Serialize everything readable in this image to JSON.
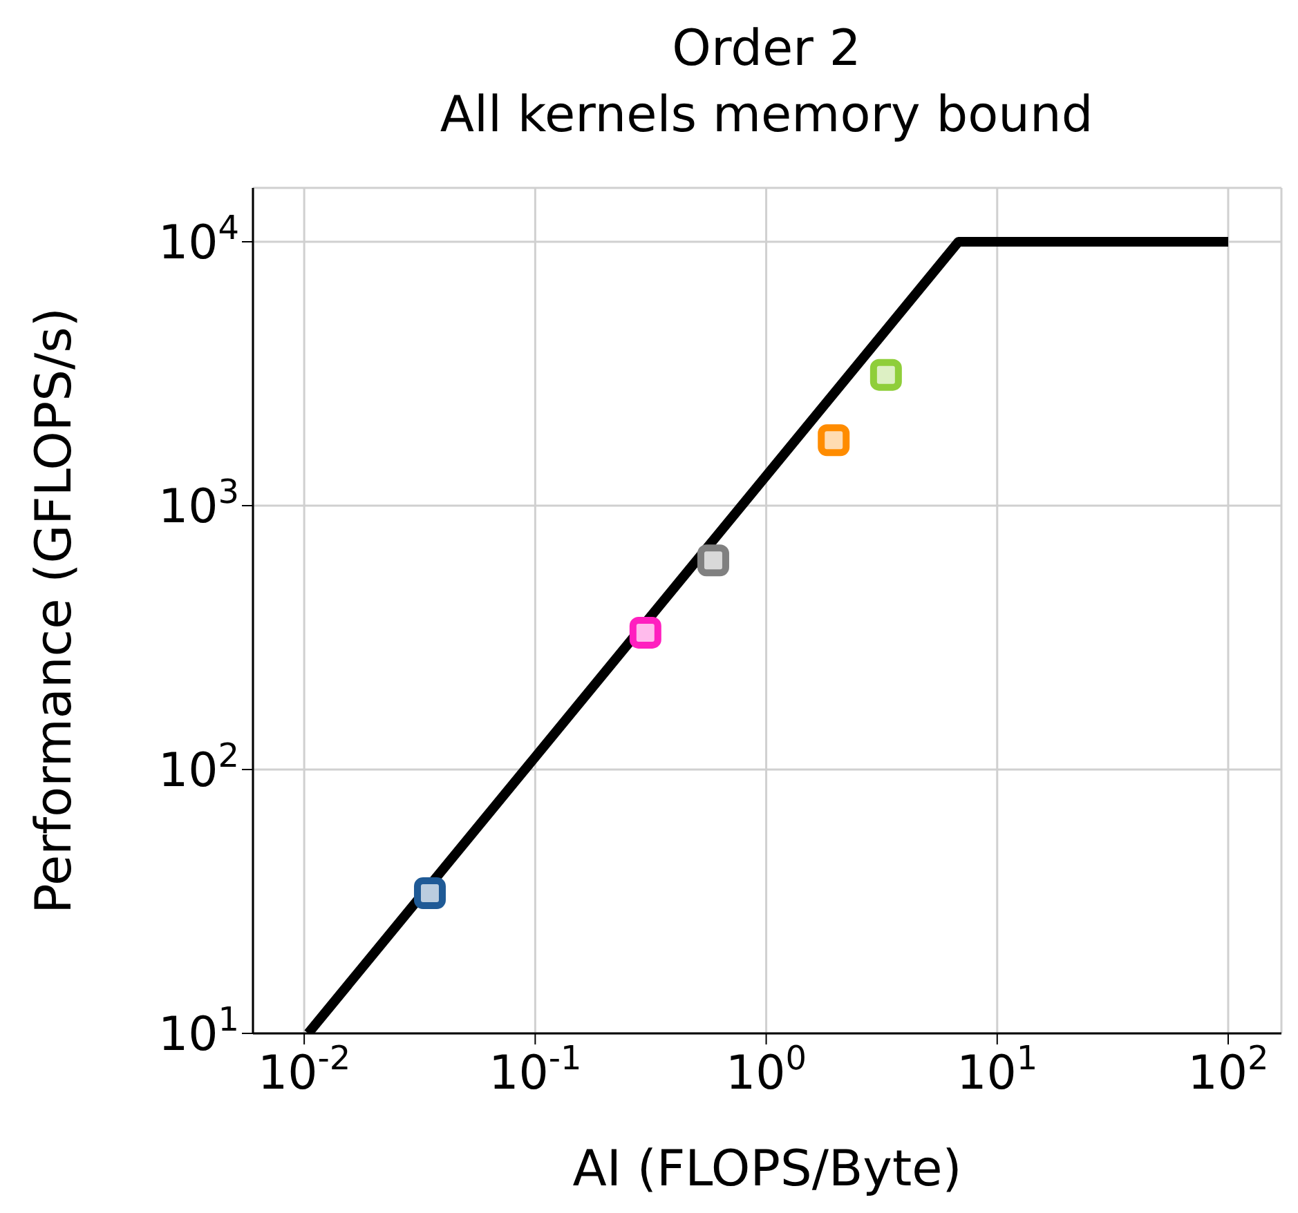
{
  "chart_data": {
    "type": "scatter",
    "title": "Order 2",
    "subtitle": "All kernels memory bound",
    "xlabel": "AI (FLOPS/Byte)",
    "ylabel": "Performance (GFLOPS/s)",
    "log": "xy",
    "grid": true,
    "marker": "square",
    "legend": false,
    "xlim": [
      0.006,
      170
    ],
    "ylim": [
      10,
      16000
    ],
    "xticks": [
      {
        "value": 0.01,
        "label": "10$^{-2}$"
      },
      {
        "value": 0.1,
        "label": "10$^{-1}$"
      },
      {
        "value": 1,
        "label": "10$^{0}$"
      },
      {
        "value": 10,
        "label": "10$^{1}$"
      },
      {
        "value": 100,
        "label": "10$^{2}$"
      }
    ],
    "yticks": [
      {
        "value": 10,
        "label": "10$^{1}$"
      },
      {
        "value": 100,
        "label": "10$^{2}$"
      },
      {
        "value": 1000,
        "label": "10$^{3}$"
      },
      {
        "value": 10000,
        "label": "10$^{4}$"
      }
    ],
    "series": [
      {
        "type": "line",
        "marker": "none",
        "color": "#000000",
        "x": [
          0.0104,
          6.8,
          100
        ],
        "values": [
          10,
          10000,
          10000
        ]
      },
      {
        "color": "#1f5a96",
        "x": [
          0.035
        ],
        "values": [
          34
        ]
      },
      {
        "color": "#ff1fbf",
        "x": [
          0.3
        ],
        "values": [
          330
        ]
      },
      {
        "color": "#808080",
        "x": [
          0.59
        ],
        "values": [
          620
        ]
      },
      {
        "color": "#ff8c00",
        "x": [
          1.96
        ],
        "values": [
          1770
        ]
      },
      {
        "color": "#8fce3a",
        "x": [
          3.3
        ],
        "values": [
          3130
        ]
      }
    ]
  }
}
